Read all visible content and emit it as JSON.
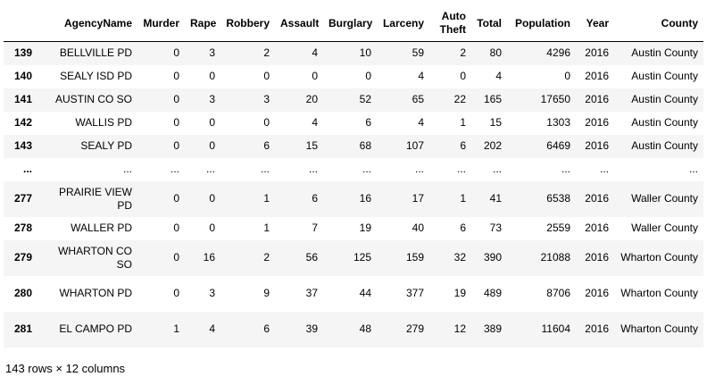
{
  "columns": [
    "",
    "AgencyName",
    "Murder",
    "Rape",
    "Robbery",
    "Assault",
    "Burglary",
    "Larceny",
    "Auto Theft",
    "Total",
    "Population",
    "Year",
    "County"
  ],
  "rows": [
    [
      "139",
      "BELLVILLE PD",
      "0",
      "3",
      "2",
      "4",
      "10",
      "59",
      "2",
      "80",
      "4296",
      "2016",
      "Austin County"
    ],
    [
      "140",
      "SEALY ISD PD",
      "0",
      "0",
      "0",
      "0",
      "0",
      "4",
      "0",
      "4",
      "0",
      "2016",
      "Austin County"
    ],
    [
      "141",
      "AUSTIN CO SO",
      "0",
      "3",
      "3",
      "20",
      "52",
      "65",
      "22",
      "165",
      "17650",
      "2016",
      "Austin County"
    ],
    [
      "142",
      "WALLIS PD",
      "0",
      "0",
      "0",
      "4",
      "6",
      "4",
      "1",
      "15",
      "1303",
      "2016",
      "Austin County"
    ],
    [
      "143",
      "SEALY PD",
      "0",
      "0",
      "6",
      "15",
      "68",
      "107",
      "6",
      "202",
      "6469",
      "2016",
      "Austin County"
    ],
    [
      "...",
      "...",
      "...",
      "...",
      "...",
      "...",
      "...",
      "...",
      "...",
      "...",
      "...",
      "...",
      "..."
    ],
    [
      "277",
      "PRAIRIE VIEW PD",
      "0",
      "0",
      "1",
      "6",
      "16",
      "17",
      "1",
      "41",
      "6538",
      "2016",
      "Waller County"
    ],
    [
      "278",
      "WALLER PD",
      "0",
      "0",
      "1",
      "7",
      "19",
      "40",
      "6",
      "73",
      "2559",
      "2016",
      "Waller County"
    ],
    [
      "279",
      "WHARTON CO SO",
      "0",
      "16",
      "2",
      "56",
      "125",
      "159",
      "32",
      "390",
      "21088",
      "2016",
      "Wharton County"
    ],
    [
      "280",
      "WHARTON PD",
      "0",
      "3",
      "9",
      "37",
      "44",
      "377",
      "19",
      "489",
      "8706",
      "2016",
      "Wharton County"
    ],
    [
      "281",
      "EL CAMPO PD",
      "1",
      "4",
      "6",
      "39",
      "48",
      "279",
      "12",
      "389",
      "11604",
      "2016",
      "Wharton County"
    ]
  ],
  "footer": "143 rows × 12 columns"
}
